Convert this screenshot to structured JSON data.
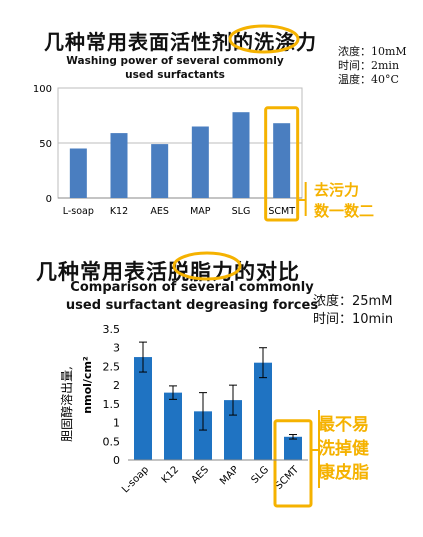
{
  "chart_data": [
    {
      "type": "bar",
      "title": "几种常用表面活性剂的洗涤力",
      "subtitle": "Washing power of several commonly used surfactants",
      "conditions": [
        "浓度：10mM",
        "时间：2min",
        "温度：40°C"
      ],
      "categories": [
        "L-soap",
        "K12",
        "AES",
        "MAP",
        "SLG",
        "SCMT"
      ],
      "values": [
        45,
        59,
        49,
        65,
        78,
        68
      ],
      "ylim": [
        0,
        100
      ],
      "yticks": [
        "0",
        "50",
        "100"
      ],
      "grid": true,
      "bar_color": "#4A7EC0",
      "highlight_category": "SCMT",
      "annotation": [
        "去污力",
        "数一数二"
      ],
      "annotation_color": "#F5B200"
    },
    {
      "type": "bar",
      "title": "几种常用表活脱脂力的对比",
      "subtitle": "Comparison of several commonly used surfactant degreasing forces",
      "conditions": [
        "浓度：25mM",
        "时间：10min"
      ],
      "ylabel_cn": "胆固醇溶出量,",
      "ylabel_unit": "nmol/cm²",
      "categories": [
        "L-soap",
        "K12",
        "AES",
        "MAP",
        "SLG",
        "SCMT"
      ],
      "values": [
        2.75,
        1.8,
        1.3,
        1.6,
        2.6,
        0.62
      ],
      "errors": [
        0.4,
        0.18,
        0.5,
        0.4,
        0.4,
        0.06
      ],
      "ylim": [
        0,
        3.5
      ],
      "yticks": [
        "0",
        "0.5",
        "1",
        "1.5",
        "2",
        "2.5",
        "3",
        "3.5"
      ],
      "grid": false,
      "bar_color": "#1F73C2",
      "highlight_category": "SCMT",
      "annotation": [
        "最不易",
        "洗掉健",
        "康皮脂"
      ],
      "annotation_color": "#F5B200"
    }
  ],
  "highlights": {
    "chart1_title_word": "洗涤力",
    "chart2_title_word": "脱脂力",
    "color": "#F5B200"
  }
}
